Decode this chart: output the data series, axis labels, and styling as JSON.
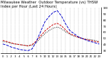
{
  "title": "Milwaukee Weather  Outdoor Temperature (vs) THSW Index per Hour (Last 24 Hours)",
  "hours": [
    0,
    1,
    2,
    3,
    4,
    5,
    6,
    7,
    8,
    9,
    10,
    11,
    12,
    13,
    14,
    15,
    16,
    17,
    18,
    19,
    20,
    21,
    22,
    23
  ],
  "temp": [
    46,
    44,
    42,
    40,
    39,
    38,
    37,
    39,
    45,
    53,
    61,
    67,
    72,
    74,
    70,
    63,
    57,
    54,
    51,
    49,
    47,
    46,
    44,
    43
  ],
  "thsw": [
    40,
    38,
    35,
    33,
    31,
    30,
    29,
    32,
    44,
    60,
    76,
    85,
    92,
    95,
    86,
    73,
    62,
    57,
    52,
    49,
    46,
    44,
    42,
    40
  ],
  "dew": [
    44,
    43,
    41,
    40,
    39,
    38,
    37,
    38,
    42,
    50,
    57,
    62,
    66,
    68,
    65,
    60,
    56,
    53,
    51,
    49,
    48,
    47,
    46,
    44
  ],
  "temp_color": "#cc0000",
  "thsw_color": "#0000cc",
  "dew_color": "#000000",
  "bg_color": "#ffffff",
  "grid_color": "#999999",
  "ylim": [
    25,
    100
  ],
  "ytick_labels": [
    "30",
    "40",
    "50",
    "60",
    "70",
    "80",
    "90",
    "100"
  ],
  "ytick_vals": [
    30,
    40,
    50,
    60,
    70,
    80,
    90,
    100
  ],
  "title_fontsize": 3.8,
  "tick_fontsize": 2.8,
  "line_width": 0.7
}
